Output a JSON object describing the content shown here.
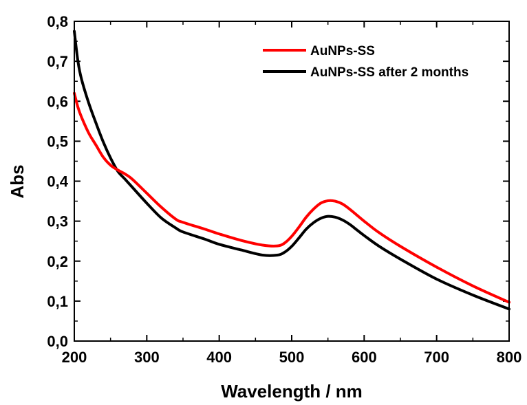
{
  "chart_data": {
    "type": "line",
    "xlabel": "Wavelength / nm",
    "ylabel": "Abs",
    "xlim": [
      200,
      800
    ],
    "ylim": [
      0,
      0.8
    ],
    "x_ticks": [
      "200",
      "300",
      "400",
      "500",
      "600",
      "700",
      "800"
    ],
    "y_ticks": [
      "0,0",
      "0,1",
      "0,2",
      "0,3",
      "0,4",
      "0,5",
      "0,6",
      "0,7",
      "0,8"
    ],
    "x_minor_step": 50,
    "y_minor_step": 0.05,
    "grid": false,
    "legend_position": "top-right",
    "series": [
      {
        "name": "AuNPs-SS",
        "color": "#ff0000",
        "x": [
          200,
          205,
          210,
          220,
          230,
          240,
          250,
          260,
          270,
          280,
          300,
          320,
          340,
          350,
          380,
          400,
          430,
          460,
          480,
          490,
          500,
          510,
          520,
          530,
          540,
          550,
          560,
          570,
          580,
          590,
          600,
          620,
          650,
          700,
          750,
          800
        ],
        "y": [
          0.62,
          0.585,
          0.56,
          0.52,
          0.49,
          0.46,
          0.44,
          0.428,
          0.418,
          0.405,
          0.37,
          0.335,
          0.305,
          0.297,
          0.28,
          0.268,
          0.252,
          0.24,
          0.238,
          0.245,
          0.262,
          0.285,
          0.31,
          0.33,
          0.345,
          0.351,
          0.35,
          0.343,
          0.33,
          0.315,
          0.3,
          0.272,
          0.237,
          0.185,
          0.138,
          0.097
        ]
      },
      {
        "name": "AuNPs-SS after 2 months",
        "color": "#000000",
        "x": [
          200,
          205,
          210,
          220,
          230,
          240,
          250,
          260,
          270,
          280,
          300,
          320,
          340,
          350,
          380,
          400,
          430,
          460,
          480,
          490,
          500,
          510,
          520,
          530,
          540,
          550,
          560,
          570,
          580,
          590,
          600,
          620,
          650,
          700,
          750,
          800
        ],
        "y": [
          0.775,
          0.7,
          0.655,
          0.595,
          0.545,
          0.498,
          0.458,
          0.425,
          0.405,
          0.385,
          0.345,
          0.308,
          0.283,
          0.273,
          0.255,
          0.242,
          0.228,
          0.215,
          0.215,
          0.222,
          0.237,
          0.258,
          0.28,
          0.296,
          0.307,
          0.312,
          0.31,
          0.303,
          0.292,
          0.278,
          0.264,
          0.238,
          0.205,
          0.155,
          0.115,
          0.08
        ]
      }
    ]
  }
}
